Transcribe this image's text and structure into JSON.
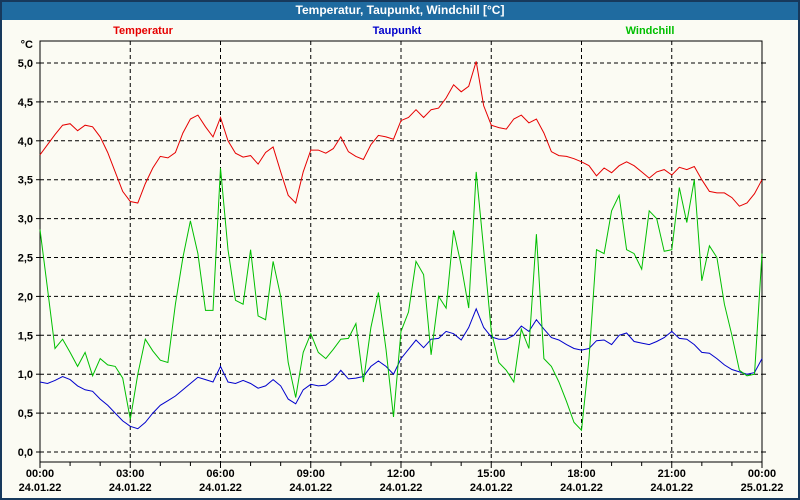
{
  "window": {
    "title": "Temperatur, Taupunkt, Windchill [°C]"
  },
  "colors": {
    "titlebar_bg": "#1f6ba0",
    "titlebar_text": "#ffffff",
    "frame_border": "#17395c",
    "background": "#fbfbf3",
    "axis": "#000000",
    "grid": "#000000",
    "temperatur": "#e60000",
    "taupunkt": "#0000cc",
    "windchill": "#00bf00"
  },
  "chart_data": {
    "type": "line",
    "title": "Temperatur, Taupunkt, Windchill [°C]",
    "ylabel": "°C",
    "xlabel": "",
    "ylim": [
      0,
      5.0
    ],
    "ytick_step": 0.5,
    "grid": "dashed, horizontal every 0.5 °C, vertical every 3 h",
    "legend_position": "top, colored text labels",
    "x_unit": "hours",
    "x_range_hours": [
      0,
      24
    ],
    "x_step_hours": 0.25,
    "yticks": [
      {
        "v": 5.0,
        "label": "5,0"
      },
      {
        "v": 4.5,
        "label": "4,5"
      },
      {
        "v": 4.0,
        "label": "4,0"
      },
      {
        "v": 3.5,
        "label": "3,5"
      },
      {
        "v": 3.0,
        "label": "3,0"
      },
      {
        "v": 2.5,
        "label": "2,5"
      },
      {
        "v": 2.0,
        "label": "2,0"
      },
      {
        "v": 1.5,
        "label": "1,5"
      },
      {
        "v": 1.0,
        "label": "1,0"
      },
      {
        "v": 0.5,
        "label": "0,5"
      },
      {
        "v": 0.0,
        "label": "0,0"
      }
    ],
    "xticks": [
      {
        "h": 0,
        "time": "00:00",
        "date": "24.01.22"
      },
      {
        "h": 3,
        "time": "03:00",
        "date": "24.01.22"
      },
      {
        "h": 6,
        "time": "06:00",
        "date": "24.01.22"
      },
      {
        "h": 9,
        "time": "09:00",
        "date": "24.01.22"
      },
      {
        "h": 12,
        "time": "12:00",
        "date": "24.01.22"
      },
      {
        "h": 15,
        "time": "15:00",
        "date": "24.01.22"
      },
      {
        "h": 18,
        "time": "18:00",
        "date": "24.01.22"
      },
      {
        "h": 21,
        "time": "21:00",
        "date": "24.01.22"
      },
      {
        "h": 24,
        "time": "00:00",
        "date": "25.01.22"
      }
    ],
    "legend": [
      {
        "label": "Temperatur",
        "color": "#e60000",
        "x_center": 143
      },
      {
        "label": "Taupunkt",
        "color": "#0000cc",
        "x_center": 397
      },
      {
        "label": "Windchill",
        "color": "#00bf00",
        "x_center": 650
      }
    ],
    "series": [
      {
        "name": "Temperatur",
        "color": "#e60000",
        "values": [
          3.82,
          3.95,
          4.08,
          4.2,
          4.22,
          4.13,
          4.2,
          4.18,
          4.05,
          3.85,
          3.6,
          3.35,
          3.22,
          3.2,
          3.45,
          3.65,
          3.8,
          3.78,
          3.85,
          4.1,
          4.28,
          4.33,
          4.18,
          4.05,
          4.3,
          4.0,
          3.84,
          3.79,
          3.81,
          3.7,
          3.85,
          3.92,
          3.6,
          3.3,
          3.2,
          3.6,
          3.88,
          3.88,
          3.84,
          3.9,
          4.05,
          3.86,
          3.8,
          3.76,
          3.95,
          4.07,
          4.05,
          4.02,
          4.26,
          4.3,
          4.4,
          4.3,
          4.4,
          4.42,
          4.55,
          4.72,
          4.63,
          4.7,
          5.02,
          4.45,
          4.2,
          4.17,
          4.15,
          4.28,
          4.33,
          4.23,
          4.28,
          4.1,
          3.86,
          3.81,
          3.8,
          3.77,
          3.73,
          3.68,
          3.55,
          3.65,
          3.59,
          3.68,
          3.73,
          3.68,
          3.6,
          3.52,
          3.6,
          3.63,
          3.56,
          3.66,
          3.63,
          3.67,
          3.5,
          3.35,
          3.33,
          3.33,
          3.27,
          3.16,
          3.2,
          3.32,
          3.5
        ]
      },
      {
        "name": "Taupunkt",
        "color": "#0000cc",
        "values": [
          0.9,
          0.88,
          0.92,
          0.97,
          0.93,
          0.85,
          0.8,
          0.78,
          0.68,
          0.6,
          0.5,
          0.4,
          0.33,
          0.3,
          0.38,
          0.5,
          0.6,
          0.66,
          0.72,
          0.8,
          0.88,
          0.96,
          0.93,
          0.9,
          1.1,
          0.9,
          0.88,
          0.92,
          0.88,
          0.82,
          0.85,
          0.93,
          0.85,
          0.68,
          0.62,
          0.8,
          0.87,
          0.85,
          0.86,
          0.93,
          1.05,
          0.94,
          0.95,
          0.97,
          1.1,
          1.17,
          1.1,
          1.0,
          1.2,
          1.32,
          1.44,
          1.34,
          1.45,
          1.46,
          1.55,
          1.52,
          1.44,
          1.6,
          1.84,
          1.6,
          1.48,
          1.45,
          1.45,
          1.5,
          1.62,
          1.55,
          1.7,
          1.58,
          1.47,
          1.44,
          1.38,
          1.33,
          1.31,
          1.33,
          1.43,
          1.44,
          1.38,
          1.5,
          1.53,
          1.42,
          1.4,
          1.38,
          1.42,
          1.47,
          1.55,
          1.46,
          1.45,
          1.38,
          1.28,
          1.27,
          1.2,
          1.12,
          1.06,
          1.03,
          1.0,
          1.02,
          1.2
        ]
      },
      {
        "name": "Windchill",
        "color": "#00bf00",
        "values": [
          2.86,
          2.1,
          1.33,
          1.45,
          1.28,
          1.1,
          1.28,
          0.98,
          1.2,
          1.12,
          1.1,
          0.95,
          0.42,
          1.0,
          1.45,
          1.3,
          1.18,
          1.15,
          1.9,
          2.5,
          2.97,
          2.55,
          1.82,
          1.82,
          3.65,
          2.6,
          1.95,
          1.9,
          2.6,
          1.75,
          1.7,
          2.45,
          2.0,
          1.15,
          0.7,
          1.28,
          1.52,
          1.28,
          1.2,
          1.32,
          1.45,
          1.46,
          1.65,
          0.9,
          1.6,
          2.05,
          1.32,
          0.45,
          1.55,
          1.8,
          2.45,
          2.28,
          1.25,
          2.0,
          1.85,
          2.85,
          2.4,
          1.85,
          3.6,
          2.6,
          1.55,
          1.15,
          1.05,
          0.9,
          1.58,
          1.33,
          2.8,
          1.2,
          1.1,
          0.9,
          0.65,
          0.38,
          0.28,
          1.2,
          2.6,
          2.55,
          3.1,
          3.3,
          2.6,
          2.55,
          2.35,
          3.1,
          3.0,
          2.58,
          2.6,
          3.4,
          2.95,
          3.5,
          2.2,
          2.65,
          2.5,
          1.9,
          1.5,
          1.05,
          0.98,
          1.0,
          2.55
        ]
      }
    ]
  }
}
